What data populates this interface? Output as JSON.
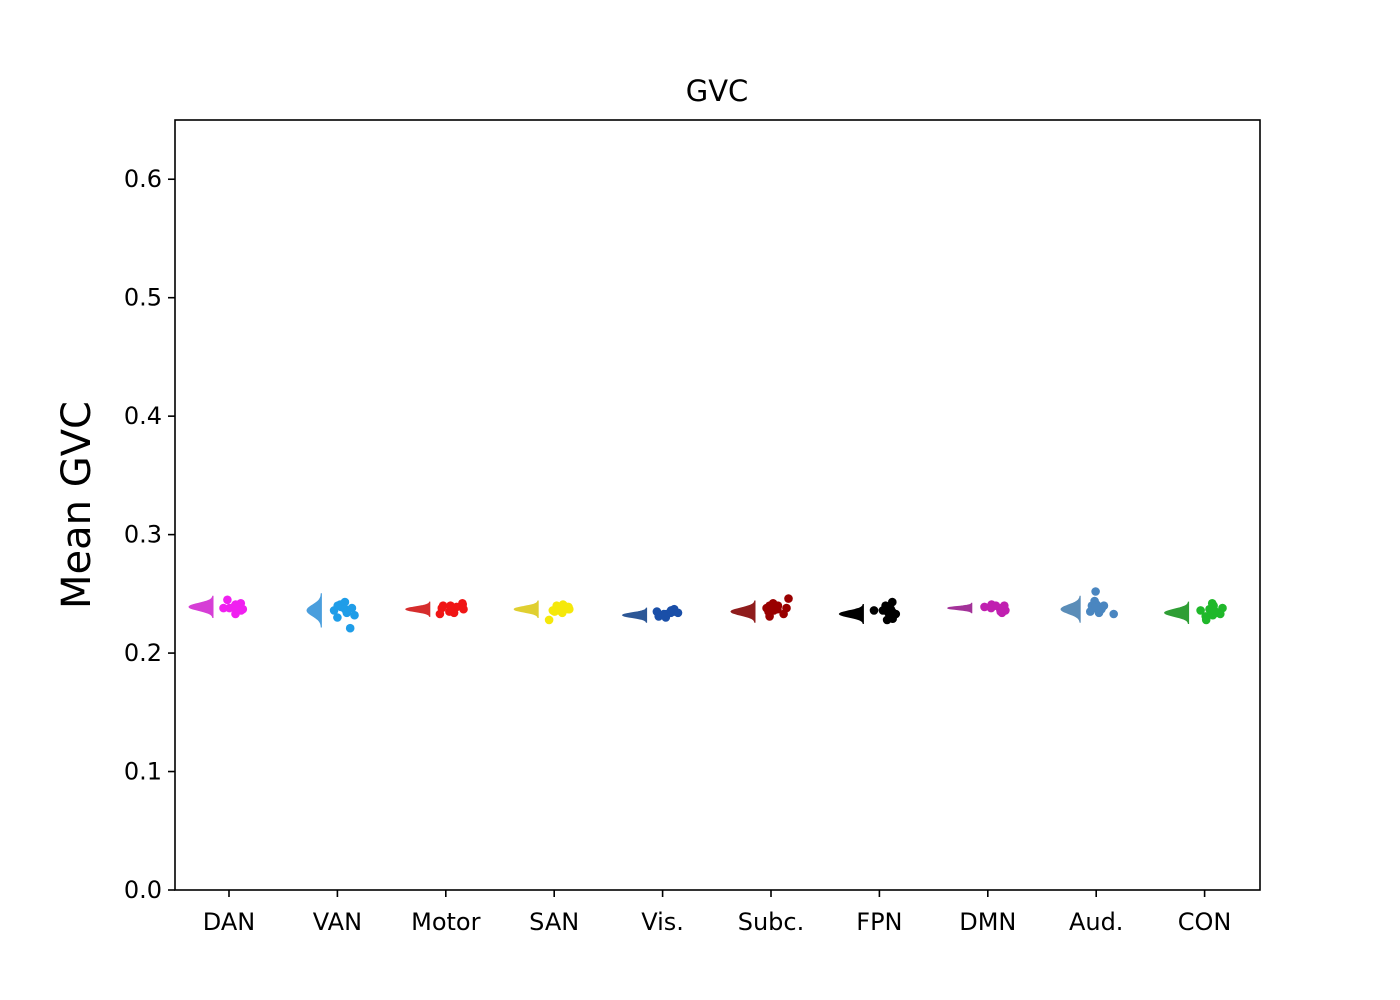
{
  "chart_data": {
    "type": "raincloud",
    "title": "GVC",
    "xlabel": "",
    "ylabel": "Mean GVC",
    "ylim": [
      0,
      0.65
    ],
    "yticks": [
      0.0,
      0.1,
      0.2,
      0.3,
      0.4,
      0.5,
      0.6
    ],
    "ytick_labels": [
      "0.0",
      "0.1",
      "0.2",
      "0.3",
      "0.4",
      "0.5",
      "0.6"
    ],
    "grid": false,
    "categories": [
      "DAN",
      "VAN",
      "Motor",
      "SAN",
      "Vis.",
      "Subc.",
      "FPN",
      "DMN",
      "Aud.",
      "CON"
    ],
    "series": [
      {
        "category": "DAN",
        "color": "#d63ed6",
        "point_color": "#f020f0",
        "density_center": 0.239,
        "density_spread": 0.009,
        "density_scale": 1.0,
        "points": [
          0.245,
          0.242,
          0.24,
          0.239,
          0.238,
          0.237,
          0.236,
          0.24,
          0.241,
          0.233,
          0.238,
          0.236
        ]
      },
      {
        "category": "VAN",
        "color": "#4a9edd",
        "point_color": "#1f9de8",
        "density_center": 0.236,
        "density_spread": 0.014,
        "density_scale": 0.6,
        "points": [
          0.243,
          0.241,
          0.239,
          0.237,
          0.236,
          0.234,
          0.232,
          0.23,
          0.24,
          0.221,
          0.238,
          0.235
        ]
      },
      {
        "category": "Motor",
        "color": "#d62d2d",
        "point_color": "#f01515",
        "density_center": 0.237,
        "density_spread": 0.006,
        "density_scale": 1.0,
        "points": [
          0.242,
          0.241,
          0.24,
          0.239,
          0.238,
          0.237,
          0.236,
          0.235,
          0.234,
          0.24,
          0.238,
          0.233
        ]
      },
      {
        "category": "SAN",
        "color": "#e0cf30",
        "point_color": "#f5e80a",
        "density_center": 0.237,
        "density_spread": 0.007,
        "density_scale": 1.0,
        "points": [
          0.241,
          0.24,
          0.239,
          0.238,
          0.237,
          0.236,
          0.235,
          0.234,
          0.228,
          0.24,
          0.237,
          0.236
        ]
      },
      {
        "category": "Vis.",
        "color": "#2c5796",
        "point_color": "#1a4fa8",
        "density_center": 0.232,
        "density_spread": 0.006,
        "density_scale": 1.0,
        "points": [
          0.237,
          0.236,
          0.235,
          0.234,
          0.233,
          0.232,
          0.231,
          0.23,
          0.234,
          0.233,
          0.232,
          0.235
        ]
      },
      {
        "category": "Subc.",
        "color": "#8f1c1c",
        "point_color": "#990000",
        "density_center": 0.235,
        "density_spread": 0.009,
        "density_scale": 1.0,
        "points": [
          0.246,
          0.242,
          0.24,
          0.239,
          0.238,
          0.237,
          0.236,
          0.235,
          0.233,
          0.231,
          0.24,
          0.238
        ]
      },
      {
        "category": "FPN",
        "color": "#000000",
        "point_color": "#000000",
        "density_center": 0.233,
        "density_spread": 0.008,
        "density_scale": 1.0,
        "points": [
          0.243,
          0.24,
          0.238,
          0.237,
          0.236,
          0.235,
          0.234,
          0.233,
          0.232,
          0.231,
          0.23,
          0.229,
          0.228,
          0.236,
          0.234
        ]
      },
      {
        "category": "DMN",
        "color": "#a33299",
        "point_color": "#c020b0",
        "density_center": 0.238,
        "density_spread": 0.004,
        "density_scale": 1.0,
        "points": [
          0.241,
          0.24,
          0.239,
          0.238,
          0.237,
          0.236,
          0.235,
          0.234,
          0.24,
          0.238
        ]
      },
      {
        "category": "Aud.",
        "color": "#5b8db8",
        "point_color": "#4a86c0",
        "density_center": 0.237,
        "density_spread": 0.011,
        "density_scale": 0.8,
        "points": [
          0.252,
          0.244,
          0.241,
          0.24,
          0.239,
          0.238,
          0.237,
          0.236,
          0.235,
          0.234,
          0.233,
          0.24
        ]
      },
      {
        "category": "CON",
        "color": "#2f9e35",
        "point_color": "#1fb82a",
        "density_center": 0.234,
        "density_spread": 0.009,
        "density_scale": 1.0,
        "points": [
          0.242,
          0.24,
          0.238,
          0.237,
          0.236,
          0.235,
          0.234,
          0.233,
          0.232,
          0.231,
          0.228,
          0.236
        ]
      }
    ]
  }
}
